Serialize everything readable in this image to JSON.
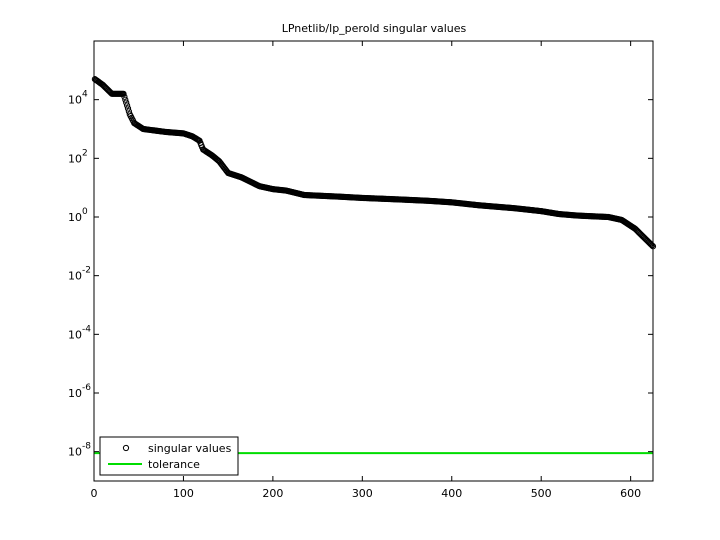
{
  "chart_data": {
    "type": "scatter",
    "title": "LPnetlib/lp_perold singular values",
    "xlabel": "",
    "ylabel": "",
    "xlim": [
      0,
      625
    ],
    "ylim_log10": [
      -9,
      6
    ],
    "y_scale": "log",
    "x_ticks": [
      0,
      100,
      200,
      300,
      400,
      500,
      600
    ],
    "y_ticks": [
      {
        "base": "10",
        "exp": "4"
      },
      {
        "base": "10",
        "exp": "2"
      },
      {
        "base": "10",
        "exp": "0"
      },
      {
        "base": "10",
        "exp": "-2"
      },
      {
        "base": "10",
        "exp": "-4"
      },
      {
        "base": "10",
        "exp": "-6"
      },
      {
        "base": "10",
        "exp": "-8"
      }
    ],
    "grid": false,
    "legend_placement": "bottom-left",
    "series": [
      {
        "name": "singular values",
        "marker": "circle-open",
        "color": "#000000",
        "trend_log10": [
          [
            1,
            4.7
          ],
          [
            10,
            4.5
          ],
          [
            20,
            4.2
          ],
          [
            33,
            4.2
          ],
          [
            36,
            3.9
          ],
          [
            40,
            3.5
          ],
          [
            45,
            3.2
          ],
          [
            55,
            3.0
          ],
          [
            80,
            2.9
          ],
          [
            100,
            2.85
          ],
          [
            110,
            2.75
          ],
          [
            118,
            2.6
          ],
          [
            122,
            2.3
          ],
          [
            132,
            2.1
          ],
          [
            140,
            1.9
          ],
          [
            150,
            1.5
          ],
          [
            165,
            1.35
          ],
          [
            185,
            1.05
          ],
          [
            200,
            0.95
          ],
          [
            215,
            0.9
          ],
          [
            235,
            0.75
          ],
          [
            270,
            0.7
          ],
          [
            300,
            0.65
          ],
          [
            340,
            0.6
          ],
          [
            375,
            0.55
          ],
          [
            400,
            0.5
          ],
          [
            430,
            0.4
          ],
          [
            470,
            0.3
          ],
          [
            500,
            0.2
          ],
          [
            520,
            0.1
          ],
          [
            540,
            0.05
          ],
          [
            560,
            0.02
          ],
          [
            575,
            0.0
          ],
          [
            590,
            -0.1
          ],
          [
            605,
            -0.4
          ],
          [
            615,
            -0.7
          ],
          [
            625,
            -1.0
          ]
        ]
      },
      {
        "name": "tolerance",
        "style": "line",
        "color": "#00dd00",
        "value_log10": -8.05
      }
    ]
  }
}
